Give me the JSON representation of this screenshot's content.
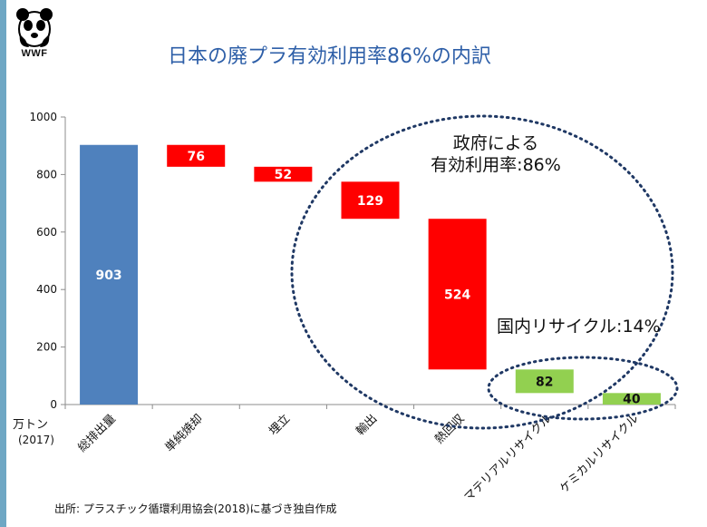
{
  "header": {
    "logo_text": "WWF",
    "title": "日本の廃プラ有効利用率86%の内訳"
  },
  "axis": {
    "unit": "万トン",
    "unit_year": "(2017)"
  },
  "annotations": {
    "government_line1": "政府による",
    "government_line2": "有効利用率:86%",
    "domestic": "国内リサイクル:14%"
  },
  "footer": {
    "source": "出所: プラスチック循環利用協会(2018)に基づき独自作成"
  },
  "colors": {
    "total": "#4f81bd",
    "loss": "#ff0000",
    "recycle": "#92d050",
    "ellipse": "#1f3864"
  },
  "chart_data": {
    "type": "bar",
    "subtype": "waterfall",
    "categories": [
      "総排出量",
      "単純焼却",
      "埋立",
      "輸出",
      "熱回収",
      "マテリアルリサイクル",
      "ケミカルリサイクル"
    ],
    "values": [
      903,
      76,
      52,
      129,
      524,
      82,
      40
    ],
    "bar_ranges": [
      [
        0,
        903
      ],
      [
        827,
        903
      ],
      [
        775,
        827
      ],
      [
        646,
        775
      ],
      [
        122,
        646
      ],
      [
        40,
        122
      ],
      [
        0,
        40
      ]
    ],
    "bar_colors": [
      "#4f81bd",
      "#ff0000",
      "#ff0000",
      "#ff0000",
      "#ff0000",
      "#92d050",
      "#92d050"
    ],
    "label_colors": [
      "#ffffff",
      "#ffffff",
      "#ffffff",
      "#ffffff",
      "#ffffff",
      "#111111",
      "#111111"
    ],
    "ylim": [
      0,
      1000
    ],
    "yticks": [
      0,
      200,
      400,
      600,
      800,
      1000
    ],
    "grid": false
  }
}
